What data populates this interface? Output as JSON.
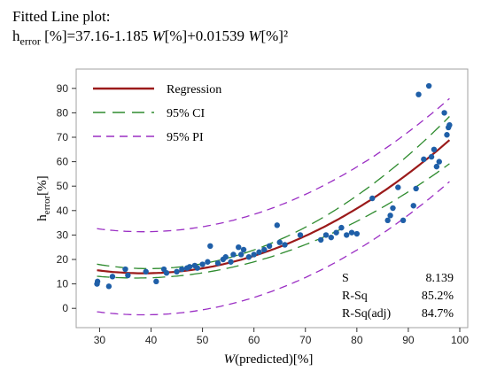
{
  "header": {
    "title_line": "Fitted Line plot:",
    "eq_h": "h",
    "eq_h_sub": "error",
    "eq_part1": " [%]=37.16-1.185 ",
    "eq_w1": "W",
    "eq_part2": "[%]+0.01539 ",
    "eq_w2": "W",
    "eq_part3": "[%]²"
  },
  "chart_data": {
    "type": "scatter",
    "xlabel_italic": "W",
    "xlabel_rest": "(predicted)[%]",
    "ylabel_main": "h",
    "ylabel_sub": "error",
    "ylabel_rest": "[%]",
    "xlim": [
      27,
      100
    ],
    "ylim": [
      -5,
      95
    ],
    "xticks": [
      30,
      40,
      50,
      60,
      70,
      80,
      90,
      100
    ],
    "yticks": [
      0,
      10,
      20,
      30,
      40,
      50,
      60,
      70,
      80,
      90
    ],
    "grid": false,
    "legend_position": "top-left",
    "regression": {
      "intercept": 37.16,
      "b1": -1.185,
      "b2": 0.01539
    },
    "ci_half_width": {
      "center": 45,
      "min": 1.8,
      "k": 0.0028
    },
    "pi_half_width": 17,
    "series": [
      {
        "name": "Regression",
        "style": "solid",
        "color": "#9b1a1a"
      },
      {
        "name": "95% CI",
        "style": "dashed",
        "color": "#2e8b2e"
      },
      {
        "name": "95% PI",
        "style": "dashed",
        "color": "#9b2fc4"
      }
    ],
    "points_color": "#1f5fa8",
    "points": [
      [
        29.5,
        10
      ],
      [
        29.6,
        11
      ],
      [
        31.8,
        9
      ],
      [
        32.5,
        13
      ],
      [
        35,
        16
      ],
      [
        35.5,
        13.5
      ],
      [
        39,
        15
      ],
      [
        41,
        11
      ],
      [
        42.5,
        16
      ],
      [
        43,
        14.5
      ],
      [
        45,
        15
      ],
      [
        46,
        16
      ],
      [
        47,
        16.5
      ],
      [
        47.5,
        17
      ],
      [
        48.5,
        17.5
      ],
      [
        49,
        16.5
      ],
      [
        50,
        18
      ],
      [
        51,
        19
      ],
      [
        51.5,
        25.5
      ],
      [
        53,
        18.5
      ],
      [
        54,
        20
      ],
      [
        54.5,
        21
      ],
      [
        55.5,
        19
      ],
      [
        56,
        22
      ],
      [
        57,
        25
      ],
      [
        57.5,
        22
      ],
      [
        58,
        24
      ],
      [
        59,
        21
      ],
      [
        60,
        22
      ],
      [
        61,
        23
      ],
      [
        62,
        24
      ],
      [
        63,
        25.5
      ],
      [
        64.5,
        34
      ],
      [
        65,
        27
      ],
      [
        66,
        26
      ],
      [
        69,
        30
      ],
      [
        73,
        28
      ],
      [
        74,
        30
      ],
      [
        75,
        29
      ],
      [
        76,
        31
      ],
      [
        77,
        33
      ],
      [
        78,
        30
      ],
      [
        79,
        31
      ],
      [
        80,
        30.5
      ],
      [
        83,
        45
      ],
      [
        86,
        36
      ],
      [
        86.5,
        38
      ],
      [
        87,
        41
      ],
      [
        88,
        49.5
      ],
      [
        89,
        36
      ],
      [
        91,
        42
      ],
      [
        91.5,
        49
      ],
      [
        92,
        87.5
      ],
      [
        93,
        61
      ],
      [
        94,
        91
      ],
      [
        94.5,
        62
      ],
      [
        95,
        65
      ],
      [
        95.5,
        58
      ],
      [
        96,
        60
      ],
      [
        97,
        80
      ],
      [
        97.5,
        71
      ],
      [
        97.8,
        74
      ],
      [
        98,
        75
      ]
    ],
    "stats": [
      {
        "label": "S",
        "value": "8.139"
      },
      {
        "label": "R-Sq",
        "value": "85.2%"
      },
      {
        "label": "R-Sq(adj)",
        "value": "84.7%"
      }
    ]
  }
}
